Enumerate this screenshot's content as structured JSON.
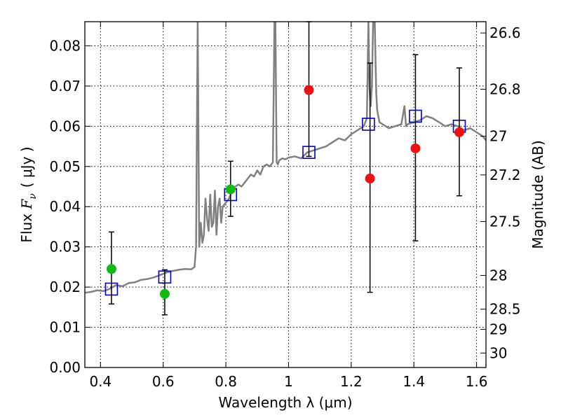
{
  "chart_data": {
    "type": "scatter",
    "xlabel": "Wavelength  λ (μm)",
    "ylabel": "Flux  Fᵥ ( μJy )",
    "ylabel_parts": {
      "prefix": "Flux ",
      "fv_F": "F",
      "fv_sub": "ν",
      "unit": "( μJy )"
    },
    "ylabel_right": "Magnitude (AB)",
    "xlim": [
      0.35,
      1.63
    ],
    "ylim": [
      0.0,
      0.086
    ],
    "grid": true,
    "x_ticks": [
      0.4,
      0.6,
      0.8,
      1.0,
      1.2,
      1.4,
      1.6
    ],
    "x_tick_labels": [
      "0.4",
      "0.6",
      "0.8",
      "1",
      "1.2",
      "1.4",
      "1.6"
    ],
    "y_ticks": [
      0.0,
      0.01,
      0.02,
      0.03,
      0.04,
      0.05,
      0.06,
      0.07,
      0.08
    ],
    "y_tick_labels": [
      "0.00",
      "0.01",
      "0.02",
      "0.03",
      "0.04",
      "0.05",
      "0.06",
      "0.07",
      "0.08"
    ],
    "right_ticks": [
      {
        "label": "26.6",
        "flux": 0.0832
      },
      {
        "label": "26.8",
        "flux": 0.0692
      },
      {
        "label": "27",
        "flux": 0.0575
      },
      {
        "label": "27.2",
        "flux": 0.0479
      },
      {
        "label": "27.5",
        "flux": 0.0363
      },
      {
        "label": "28",
        "flux": 0.0229
      },
      {
        "label": "28.5",
        "flux": 0.0145
      },
      {
        "label": "29",
        "flux": 0.0095
      },
      {
        "label": "30",
        "flux": 0.0036
      }
    ],
    "series": [
      {
        "name": "SED model",
        "kind": "line",
        "color": "#808080",
        "x": [
          0.35,
          0.37,
          0.39,
          0.41,
          0.43,
          0.45,
          0.47,
          0.49,
          0.51,
          0.53,
          0.55,
          0.57,
          0.59,
          0.61,
          0.63,
          0.65,
          0.67,
          0.69,
          0.7,
          0.705,
          0.71,
          0.715,
          0.72,
          0.725,
          0.73,
          0.735,
          0.74,
          0.745,
          0.75,
          0.755,
          0.76,
          0.765,
          0.77,
          0.775,
          0.78,
          0.785,
          0.79,
          0.8,
          0.81,
          0.82,
          0.83,
          0.84,
          0.85,
          0.86,
          0.87,
          0.88,
          0.89,
          0.9,
          0.91,
          0.92,
          0.93,
          0.94,
          0.95,
          0.955,
          0.958,
          0.962,
          0.966,
          0.97,
          0.98,
          0.99,
          1.0,
          1.02,
          1.04,
          1.06,
          1.08,
          1.1,
          1.12,
          1.14,
          1.16,
          1.18,
          1.2,
          1.22,
          1.24,
          1.25,
          1.255,
          1.258,
          1.262,
          1.266,
          1.27,
          1.275,
          1.278,
          1.28,
          1.283,
          1.29,
          1.3,
          1.31,
          1.32,
          1.34,
          1.36,
          1.37,
          1.375,
          1.38,
          1.4,
          1.42,
          1.44,
          1.46,
          1.48,
          1.5,
          1.52,
          1.54,
          1.56,
          1.58,
          1.6,
          1.62,
          1.63
        ],
        "y": [
          0.0186,
          0.0188,
          0.0192,
          0.019,
          0.0196,
          0.0205,
          0.0202,
          0.021,
          0.0212,
          0.0218,
          0.022,
          0.0224,
          0.023,
          0.0236,
          0.024,
          0.0243,
          0.0245,
          0.0244,
          0.025,
          0.03,
          0.086,
          0.03,
          0.036,
          0.031,
          0.033,
          0.042,
          0.037,
          0.034,
          0.043,
          0.035,
          0.036,
          0.044,
          0.033,
          0.04,
          0.042,
          0.036,
          0.04,
          0.041,
          0.042,
          0.044,
          0.045,
          0.0455,
          0.045,
          0.046,
          0.047,
          0.048,
          0.0475,
          0.049,
          0.048,
          0.05,
          0.0505,
          0.05,
          0.051,
          0.086,
          0.086,
          0.051,
          0.0505,
          0.0515,
          0.052,
          0.0518,
          0.0522,
          0.0525,
          0.052,
          0.0535,
          0.054,
          0.0545,
          0.055,
          0.056,
          0.057,
          0.0565,
          0.058,
          0.059,
          0.06,
          0.062,
          0.086,
          0.07,
          0.065,
          0.07,
          0.086,
          0.086,
          0.075,
          0.068,
          0.064,
          0.061,
          0.0605,
          0.06,
          0.0595,
          0.06,
          0.0605,
          0.065,
          0.06,
          0.0605,
          0.061,
          0.0615,
          0.0625,
          0.062,
          0.061,
          0.06,
          0.0605,
          0.06,
          0.059,
          0.0595,
          0.0585,
          0.0575,
          0.0565
        ]
      },
      {
        "name": "Model photometry",
        "kind": "open-square",
        "color": "#0000cc",
        "x": [
          0.435,
          0.605,
          0.815,
          1.065,
          1.255,
          1.405,
          1.545
        ],
        "y": [
          0.0195,
          0.0225,
          0.043,
          0.0535,
          0.0605,
          0.0625,
          0.06
        ]
      },
      {
        "name": "Detections",
        "kind": "filled-circle",
        "color": "#11bb11",
        "x": [
          0.435,
          0.605,
          0.815
        ],
        "y": [
          0.0245,
          0.0183,
          0.0443
        ],
        "err_low": [
          0.0087,
          0.0052,
          0.0067
        ],
        "err_high": [
          0.0092,
          0.006,
          0.007
        ]
      },
      {
        "name": "Low-significance points",
        "kind": "filled-circle",
        "color": "#ee1111",
        "x": [
          1.065,
          1.26,
          1.405,
          1.545
        ],
        "y": [
          0.069,
          0.047,
          0.0545,
          0.0585
        ],
        "err_low": [
          0.0165,
          0.0283,
          0.023,
          0.0158
        ],
        "err_high": [
          0.017,
          0.0287,
          0.0233,
          0.016
        ]
      }
    ]
  }
}
